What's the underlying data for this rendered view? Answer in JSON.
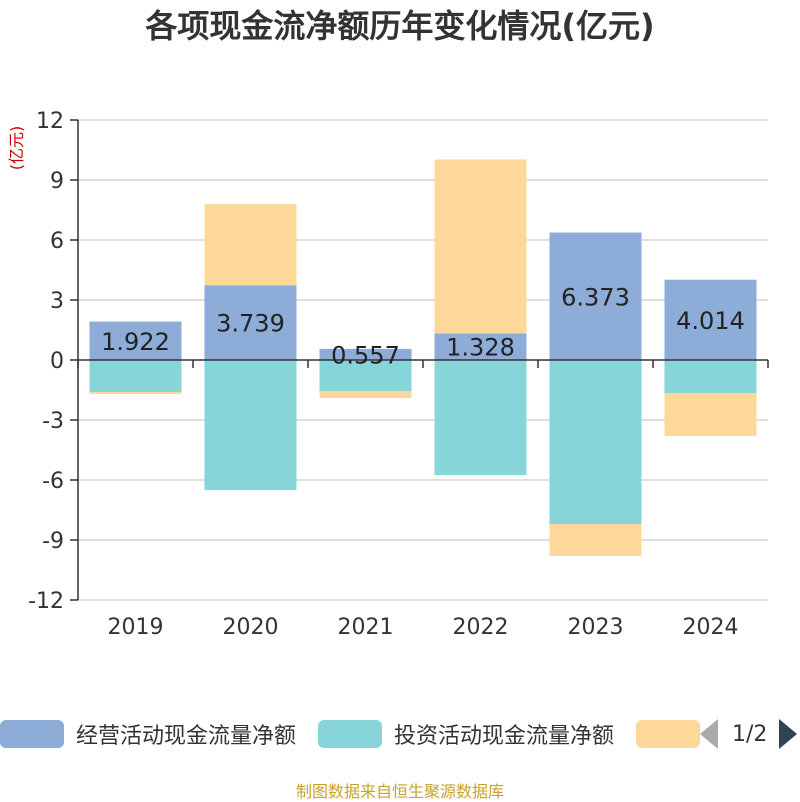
{
  "chart_data": {
    "type": "bar",
    "stacked": true,
    "title": "各项现金流净额历年变化情况(亿元)",
    "ylabel": "(亿元)",
    "xlabel": "",
    "ylim": [
      -12,
      12
    ],
    "yticks": [
      12,
      9,
      6,
      3,
      0,
      -3,
      -6,
      -9,
      -12
    ],
    "grid": true,
    "categories": [
      "2019",
      "2020",
      "2021",
      "2022",
      "2023",
      "2024"
    ],
    "series": [
      {
        "name": "经营活动现金流量净额",
        "color": "#8eacd8",
        "values": [
          1.922,
          3.739,
          0.557,
          1.328,
          6.373,
          4.014
        ],
        "labels": [
          "1.922",
          "3.739",
          "0.557",
          "1.328",
          "6.373",
          "4.014"
        ]
      },
      {
        "name": "投资活动现金流量净额",
        "color": "#87d5d8",
        "values": [
          -1.6,
          -6.5,
          -1.55,
          -5.75,
          -8.2,
          -1.65
        ]
      },
      {
        "name": "",
        "color": "#fdd89a",
        "values": [
          -0.1,
          4.05,
          -0.35,
          8.7,
          -1.6,
          -2.15
        ]
      }
    ],
    "legend_position": "bottom"
  },
  "legend": {
    "page_indicator": "1/2"
  },
  "source_note": "制图数据来自恒生聚源数据库",
  "colors": {
    "axis": "#333333",
    "grid": "#cccccc",
    "ylabel": "#cc0000",
    "source": "#c9a227"
  }
}
